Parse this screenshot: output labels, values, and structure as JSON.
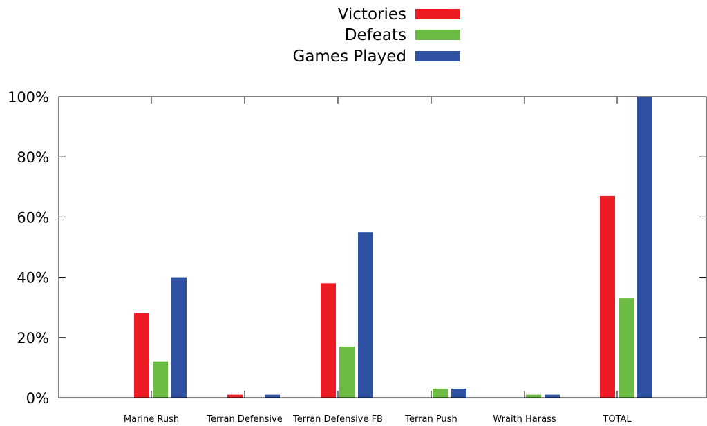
{
  "chart_data": {
    "type": "bar",
    "categories": [
      "Marine Rush",
      "Terran Defensive",
      "Terran Defensive FB",
      "Terran Push",
      "Wraith Harass",
      "TOTAL"
    ],
    "series": [
      {
        "name": "Victories",
        "color": "#ed1c24",
        "values": [
          28,
          1,
          38,
          0,
          0,
          67
        ]
      },
      {
        "name": "Defeats",
        "color": "#6cbb45",
        "values": [
          12,
          0,
          17,
          3,
          1,
          33
        ]
      },
      {
        "name": "Games Played",
        "color": "#2e51a2",
        "values": [
          40,
          1,
          55,
          3,
          1,
          100
        ]
      }
    ],
    "ylim": [
      0,
      100
    ],
    "yticks": [
      0,
      20,
      40,
      60,
      80,
      100
    ],
    "ytick_labels": [
      "0%",
      "20%",
      "40%",
      "60%",
      "80%",
      "100%"
    ],
    "legend_position": "top-center",
    "grid": false
  }
}
